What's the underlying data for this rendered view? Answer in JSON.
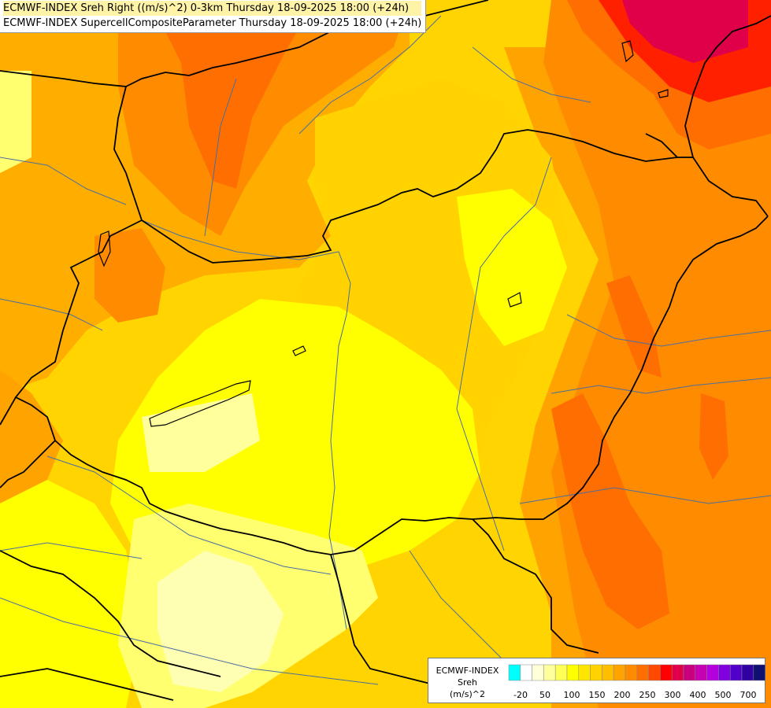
{
  "header": {
    "line1": "ECMWF-INDEX Sreh Right ((m/s)^2) 0-3km Thursday 18-09-2025 18:00 (+24h)",
    "line2": "ECMWF-INDEX SupercellCompositeParameter Thursday 18-09-2025 18:00 (+24h)"
  },
  "legend": {
    "title_line1": "ECMWF-INDEX",
    "title_line2": "Sreh",
    "title_line3": "(m/s)^2",
    "colors": [
      "#00ffff",
      "#ffffff",
      "#ffffd8",
      "#ffff9c",
      "#ffff58",
      "#ffff00",
      "#ffe600",
      "#ffd200",
      "#ffbe00",
      "#ffa300",
      "#ff8c00",
      "#ff6e00",
      "#ff4800",
      "#ff0000",
      "#e0004a",
      "#c8007e",
      "#c800b4",
      "#b400dc",
      "#8000e0",
      "#5000c8",
      "#3000a0",
      "#101070"
    ],
    "ticks": [
      "-20",
      "50",
      "100",
      "150",
      "200",
      "250",
      "300",
      "400",
      "500",
      "700"
    ]
  },
  "map": {
    "colors": {
      "pale_yellow": "#ffffb4",
      "light_yellow": "#ffff70",
      "yellow": "#ffff00",
      "gold": "#ffe600",
      "amber": "#ffd200",
      "orange_light": "#ffbe00",
      "orange": "#ffa300",
      "dark_orange": "#ff8c00",
      "red_orange": "#ff6e00",
      "red": "#ff2000",
      "magenta": "#e0004a",
      "border": "#000000",
      "river": "#4a6fa0"
    }
  }
}
